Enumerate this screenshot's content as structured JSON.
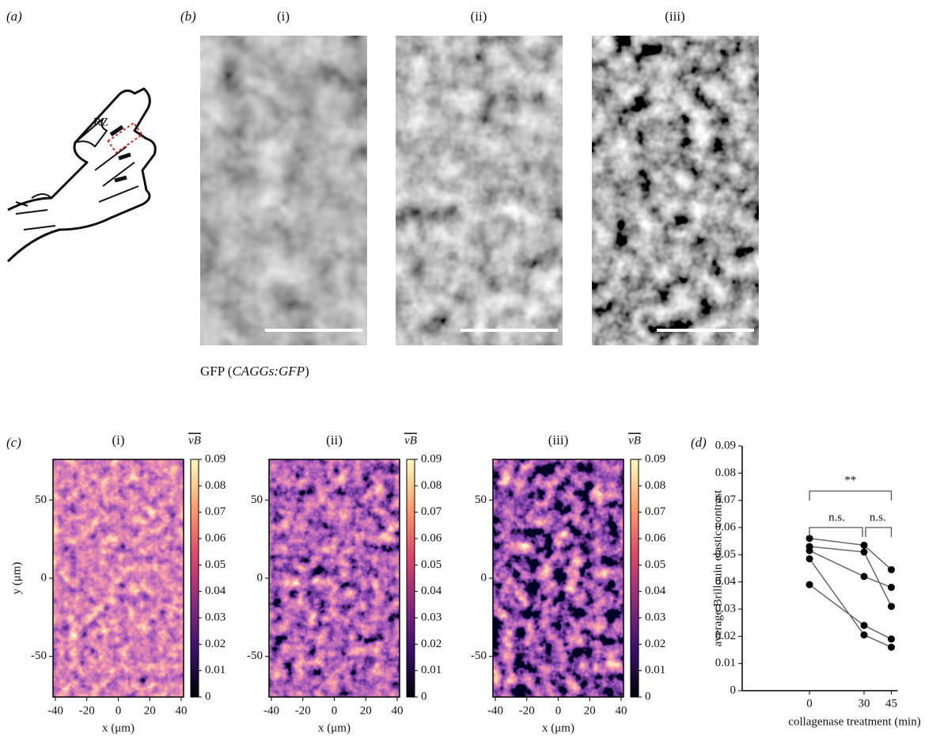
{
  "panel_labels": [
    "(a)",
    "(b)",
    "(c)",
    "(d)"
  ],
  "figure_a": {
    "label": "RZ"
  },
  "figure_b": {
    "subpanels": [
      "(i)",
      "(ii)",
      "(iii)"
    ],
    "caption_parts": [
      "GFP (",
      "CAGGs:GFP",
      ")"
    ]
  },
  "chart_data": [
    {
      "type": "heatmap",
      "title": "(i)",
      "xlabel": "x (μm)",
      "ylabel": "y (μm)",
      "colorbar_label": "νB",
      "xlim": [
        -41.5,
        41.5
      ],
      "xticks": [
        -40,
        -20,
        0,
        20,
        40
      ],
      "ylim": [
        -76,
        76
      ],
      "yticks": [
        -50,
        0,
        50
      ],
      "zlim": [
        0,
        0.09
      ],
      "zticks": [
        0,
        0.01,
        0.02,
        0.03,
        0.04,
        0.05,
        0.06,
        0.07,
        0.08,
        0.09
      ]
    },
    {
      "type": "heatmap",
      "title": "(ii)",
      "xlabel": "x (μm)",
      "colorbar_label": "νB",
      "xlim": [
        -41.5,
        41.5
      ],
      "xticks": [
        -40,
        -20,
        0,
        20,
        40
      ],
      "ylim": [
        -76,
        76
      ],
      "yticks": [
        -50,
        0,
        50
      ],
      "zlim": [
        0,
        0.09
      ],
      "zticks": [
        0,
        0.01,
        0.02,
        0.03,
        0.04,
        0.05,
        0.06,
        0.07,
        0.08,
        0.09
      ]
    },
    {
      "type": "heatmap",
      "title": "(iii)",
      "xlabel": "x (μm)",
      "colorbar_label": "νB",
      "xlim": [
        -41.5,
        41.5
      ],
      "xticks": [
        -40,
        -20,
        0,
        20,
        40
      ],
      "ylim": [
        -76,
        76
      ],
      "yticks": [
        -50,
        0,
        50
      ],
      "zlim": [
        0,
        0.09
      ],
      "zticks": [
        0,
        0.01,
        0.02,
        0.03,
        0.04,
        0.05,
        0.06,
        0.07,
        0.08,
        0.09
      ]
    },
    {
      "type": "line",
      "ylabel": "average Brillouin elastic contrast",
      "xlabel": "collagenase treatment (min)",
      "x": [
        0,
        30,
        45
      ],
      "xlim": [
        -37,
        50
      ],
      "xticks": [
        0,
        30,
        45
      ],
      "ylim": [
        0,
        0.09
      ],
      "yticks": [
        0,
        0.01,
        0.02,
        0.03,
        0.04,
        0.05,
        0.06,
        0.07,
        0.08,
        0.09
      ],
      "color": "#000000",
      "line_color": "#666666",
      "series": [
        {
          "values": [
            0.056,
            0.0535,
            0.0445
          ]
        },
        {
          "values": [
            0.053,
            0.051,
            0.031
          ]
        },
        {
          "values": [
            0.0515,
            0.042,
            0.038
          ]
        },
        {
          "values": [
            0.0485,
            0.0205,
            0.016
          ]
        },
        {
          "values": [
            0.039,
            0.024,
            0.019
          ]
        }
      ],
      "annotations": [
        "**",
        "n.s.",
        "n.s."
      ]
    }
  ]
}
